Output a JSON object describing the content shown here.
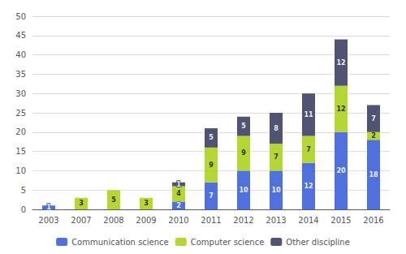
{
  "chart_data": {
    "type": "bar",
    "stacked": true,
    "categories": [
      "2003",
      "2007",
      "2008",
      "2009",
      "2010",
      "2011",
      "2012",
      "2013",
      "2014",
      "2015",
      "2016"
    ],
    "series": [
      {
        "name": "Communication science",
        "values": [
          1,
          0,
          0,
          0,
          2,
          7,
          10,
          10,
          12,
          20,
          18
        ]
      },
      {
        "name": "Computer science",
        "values": [
          0,
          3,
          5,
          3,
          4,
          9,
          9,
          7,
          7,
          12,
          2
        ]
      },
      {
        "name": "Other discipline",
        "values": [
          0,
          0,
          0,
          0,
          1,
          5,
          5,
          8,
          11,
          12,
          7
        ]
      }
    ],
    "ylim": [
      0,
      50
    ],
    "yticks": [
      0,
      5,
      10,
      15,
      20,
      25,
      30,
      35,
      40,
      45,
      50
    ],
    "grid": true,
    "legend": "bottom",
    "data_labels": true
  }
}
